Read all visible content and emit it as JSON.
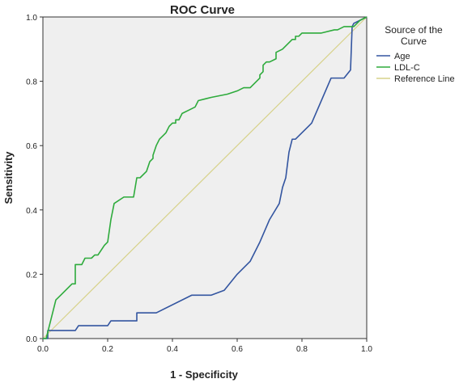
{
  "chart_data": {
    "type": "line",
    "title": "ROC Curve",
    "xlabel": "1 - Specificity",
    "ylabel": "Sensitivity",
    "xlim": [
      0,
      1
    ],
    "ylim": [
      0,
      1
    ],
    "xticks": [
      "0.0",
      "0.2",
      "0.4",
      "0.6",
      "0.8",
      "1.0"
    ],
    "yticks": [
      "0.0",
      "0.2",
      "0.4",
      "0.6",
      "0.8",
      "1.0"
    ],
    "grid": false,
    "legend": {
      "placement": "right",
      "title_lines": [
        "Source of the",
        "Curve"
      ]
    },
    "colors": {
      "plot_background": "#efefef",
      "Age": "#3355a0",
      "LDL-C": "#2eab3c",
      "Reference Line": "#d7d28a"
    },
    "series": [
      {
        "name": "Age",
        "x": [
          0.0,
          0.015,
          0.015,
          0.1,
          0.11,
          0.2,
          0.21,
          0.29,
          0.29,
          0.35,
          0.46,
          0.52,
          0.56,
          0.6,
          0.64,
          0.67,
          0.7,
          0.73,
          0.74,
          0.75,
          0.76,
          0.77,
          0.78,
          0.83,
          0.89,
          0.93,
          0.95,
          0.955,
          0.96,
          0.98,
          1.0
        ],
        "y": [
          0.0,
          0.0,
          0.025,
          0.025,
          0.04,
          0.04,
          0.055,
          0.055,
          0.08,
          0.08,
          0.135,
          0.135,
          0.15,
          0.2,
          0.24,
          0.3,
          0.37,
          0.42,
          0.47,
          0.5,
          0.58,
          0.62,
          0.62,
          0.67,
          0.81,
          0.81,
          0.835,
          0.97,
          0.98,
          0.99,
          1.0
        ]
      },
      {
        "name": "LDL-C",
        "x": [
          0.0,
          0.01,
          0.02,
          0.02,
          0.04,
          0.04,
          0.055,
          0.055,
          0.09,
          0.1,
          0.1,
          0.12,
          0.13,
          0.15,
          0.16,
          0.17,
          0.18,
          0.19,
          0.2,
          0.21,
          0.21,
          0.22,
          0.22,
          0.25,
          0.28,
          0.28,
          0.29,
          0.3,
          0.32,
          0.33,
          0.34,
          0.34,
          0.35,
          0.35,
          0.36,
          0.37,
          0.38,
          0.39,
          0.4,
          0.41,
          0.41,
          0.42,
          0.43,
          0.45,
          0.47,
          0.48,
          0.52,
          0.57,
          0.6,
          0.62,
          0.63,
          0.64,
          0.65,
          0.66,
          0.67,
          0.67,
          0.68,
          0.68,
          0.69,
          0.7,
          0.72,
          0.72,
          0.74,
          0.76,
          0.77,
          0.78,
          0.78,
          0.79,
          0.8,
          0.83,
          0.86,
          0.9,
          0.91,
          0.93,
          0.96,
          0.97,
          0.98,
          1.0
        ],
        "y": [
          0.0,
          0.0,
          0.04,
          0.04,
          0.12,
          0.12,
          0.135,
          0.135,
          0.17,
          0.17,
          0.23,
          0.23,
          0.25,
          0.25,
          0.26,
          0.26,
          0.275,
          0.29,
          0.3,
          0.37,
          0.37,
          0.42,
          0.42,
          0.44,
          0.44,
          0.44,
          0.5,
          0.5,
          0.52,
          0.55,
          0.56,
          0.57,
          0.6,
          0.6,
          0.62,
          0.63,
          0.64,
          0.66,
          0.67,
          0.67,
          0.68,
          0.68,
          0.7,
          0.71,
          0.72,
          0.74,
          0.75,
          0.76,
          0.77,
          0.78,
          0.78,
          0.78,
          0.79,
          0.8,
          0.81,
          0.82,
          0.83,
          0.85,
          0.86,
          0.86,
          0.87,
          0.89,
          0.9,
          0.92,
          0.93,
          0.93,
          0.94,
          0.94,
          0.95,
          0.95,
          0.95,
          0.96,
          0.96,
          0.97,
          0.97,
          0.98,
          0.99,
          1.0
        ]
      },
      {
        "name": "Reference Line",
        "x": [
          0.0,
          1.0
        ],
        "y": [
          0.0,
          1.0
        ]
      }
    ]
  }
}
